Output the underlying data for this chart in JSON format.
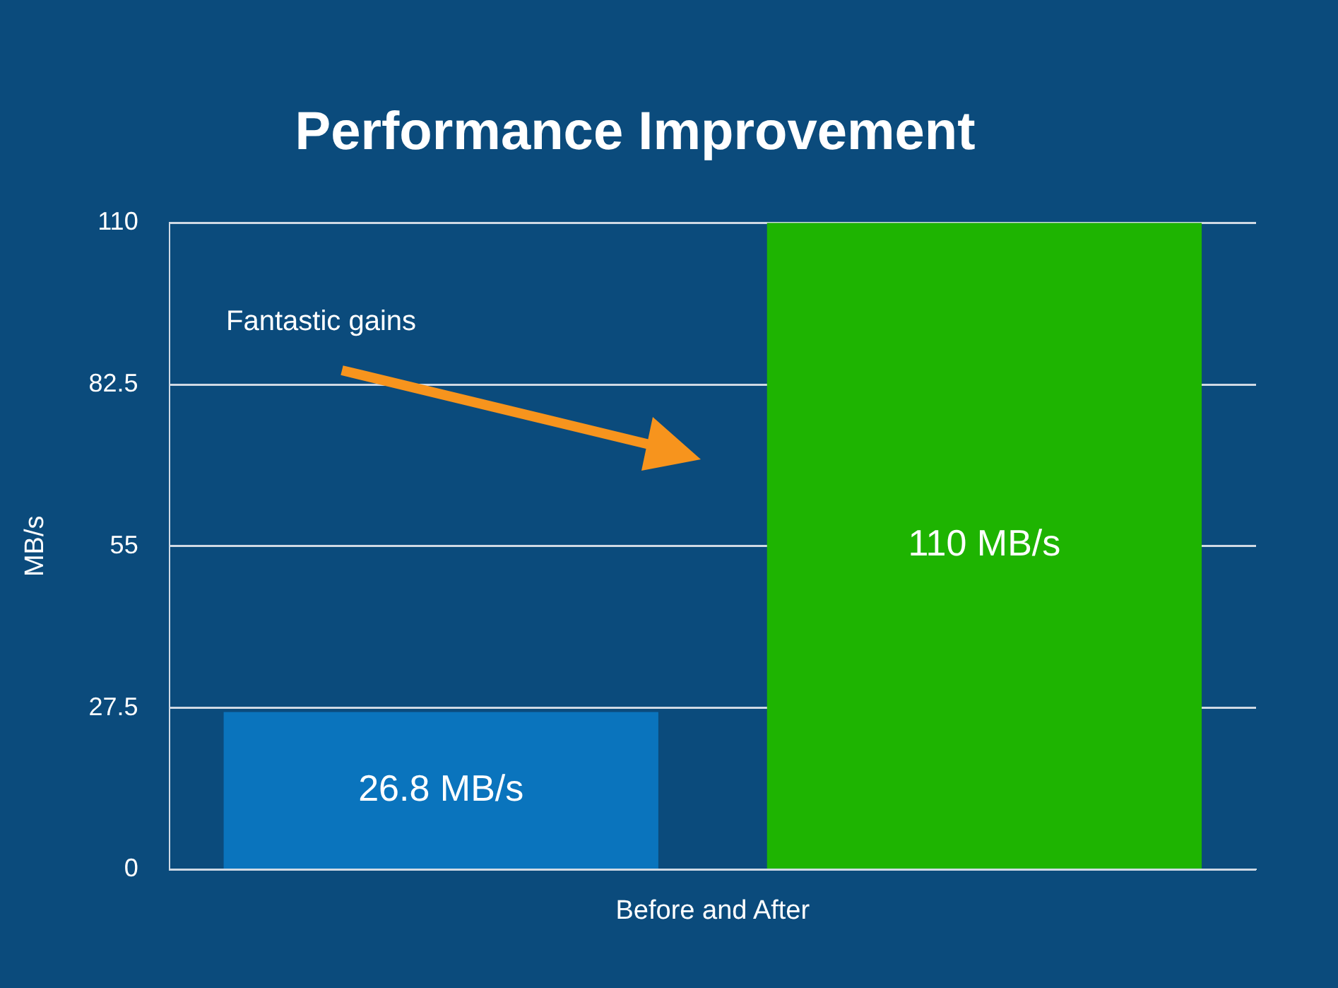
{
  "chart_data": {
    "type": "bar",
    "title": "Performance Improvement",
    "xlabel": "Before and After",
    "ylabel": "MB/s",
    "categories": [
      null,
      null
    ],
    "values": [
      26.8,
      110
    ],
    "colors": [
      "#0a74bd",
      "#1eb401"
    ],
    "value_labels": [
      "26.8 MB/s",
      "110 MB/s"
    ],
    "ylim": [
      0,
      110
    ],
    "yticks": [
      0,
      27.5,
      55,
      82.5,
      110
    ],
    "grid": "y",
    "legend": false,
    "annotations": [
      "Fantastic gains"
    ]
  }
}
